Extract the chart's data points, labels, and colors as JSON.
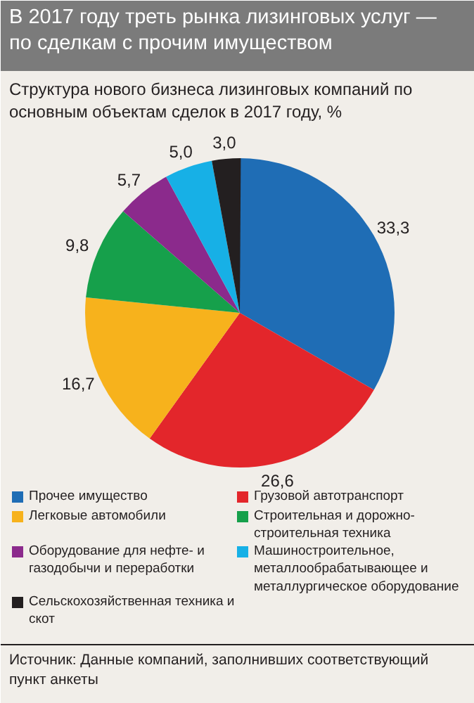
{
  "chart_data": {
    "type": "pie",
    "title": "В 2017 году треть рынка лизинговых услуг — по сделкам с прочим имуществом",
    "subtitle": "Структура нового бизнеса лизинговых компаний по основным объектам сделок в 2017 году, %",
    "categories": [
      "Прочее имущество",
      "Грузовой автотранспорт",
      "Легковые автомобили",
      "Строительная и дорожно-строительная техника",
      "Оборудование для нефте- и газодобычи и переработки",
      "Машиностроительное, металлообрабатывающее и металлургическое оборудование",
      "Сельскохозяйственная техника и скот"
    ],
    "values": [
      33.3,
      26.6,
      16.7,
      9.8,
      5.7,
      5.0,
      3.0
    ],
    "colors": [
      "#1f6db5",
      "#e3262b",
      "#f7b21c",
      "#16a04b",
      "#8b2a8c",
      "#17b0e6",
      "#231f20"
    ],
    "value_labels": [
      "33,3",
      "26,6",
      "16,7",
      "9,8",
      "5,7",
      "5,0",
      "3,0"
    ],
    "legend": "bottom",
    "annotations": [
      "Источник: Данные компаний, заполнивших соответствующий пункт анкеты"
    ]
  }
}
